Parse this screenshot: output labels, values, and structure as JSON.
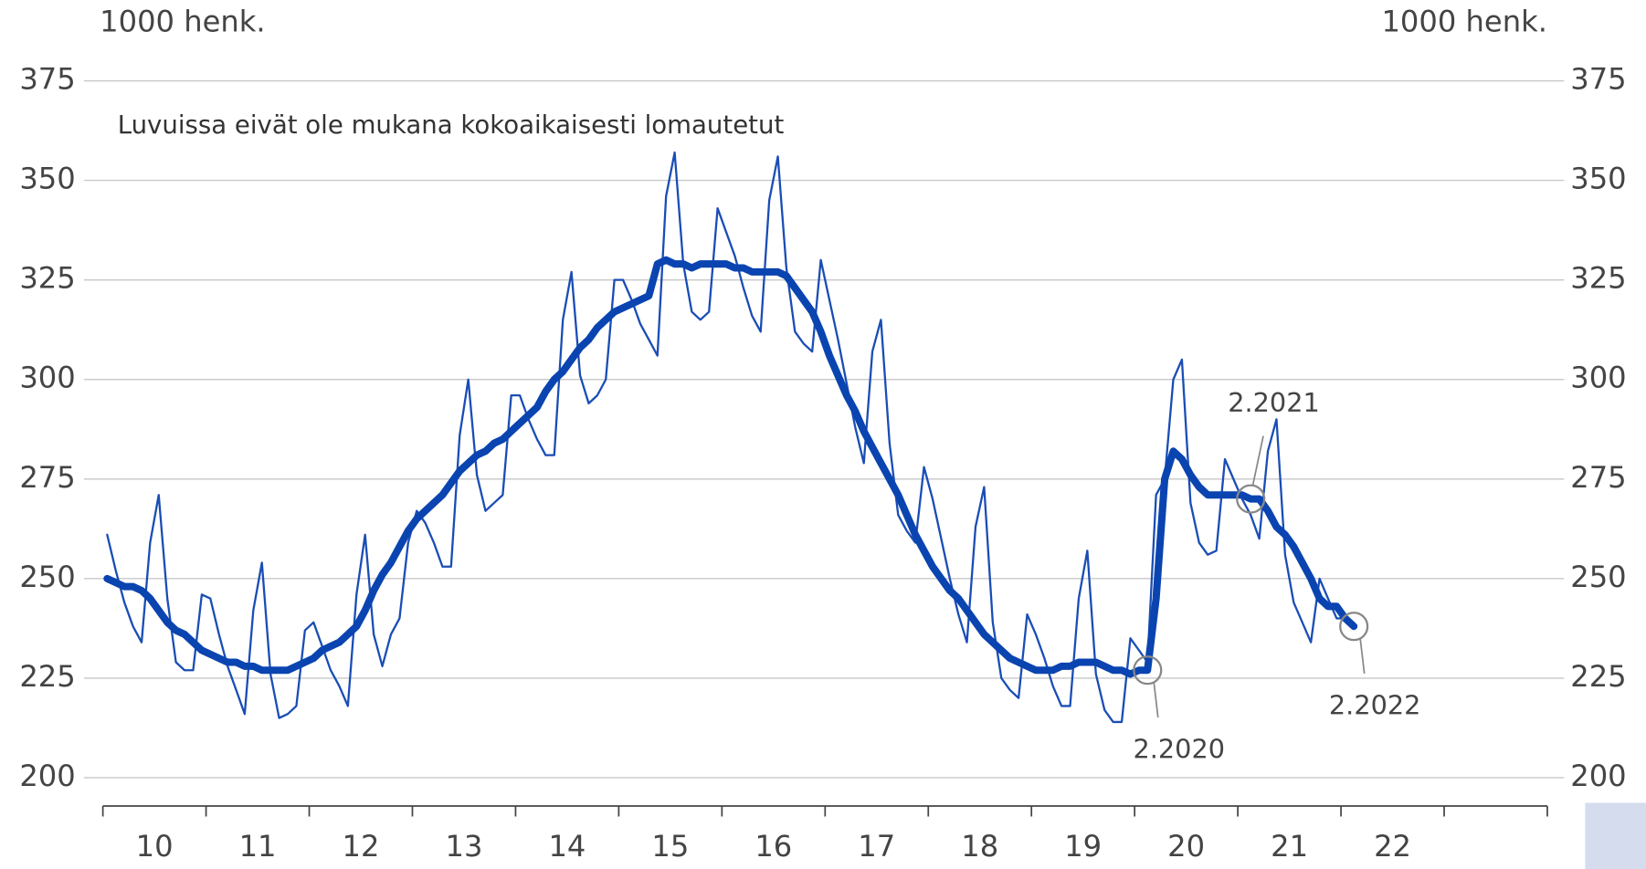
{
  "chart_data": {
    "type": "line",
    "ylabel": "1000 henk.",
    "y2label": "1000 henk.",
    "subtitle": "Luvuissa eivät ole mukana kokoaikaisesti lomautetut",
    "categories": [
      "10",
      "11",
      "12",
      "13",
      "14",
      "15",
      "16",
      "17",
      "18",
      "19",
      "20",
      "21",
      "22"
    ],
    "x": [
      "1.2010",
      "2.2010",
      "3.2010",
      "4.2010",
      "5.2010",
      "6.2010",
      "7.2010",
      "8.2010",
      "9.2010",
      "10.2010",
      "11.2010",
      "12.2010",
      "1.2011",
      "2.2011",
      "3.2011",
      "4.2011",
      "5.2011",
      "6.2011",
      "7.2011",
      "8.2011",
      "9.2011",
      "10.2011",
      "11.2011",
      "12.2011",
      "1.2012",
      "2.2012",
      "3.2012",
      "4.2012",
      "5.2012",
      "6.2012",
      "7.2012",
      "8.2012",
      "9.2012",
      "10.2012",
      "11.2012",
      "12.2012",
      "1.2013",
      "2.2013",
      "3.2013",
      "4.2013",
      "5.2013",
      "6.2013",
      "7.2013",
      "8.2013",
      "9.2013",
      "10.2013",
      "11.2013",
      "12.2013",
      "1.2014",
      "2.2014",
      "3.2014",
      "4.2014",
      "5.2014",
      "6.2014",
      "7.2014",
      "8.2014",
      "9.2014",
      "10.2014",
      "11.2014",
      "12.2014",
      "1.2015",
      "2.2015",
      "3.2015",
      "4.2015",
      "5.2015",
      "6.2015",
      "7.2015",
      "8.2015",
      "9.2015",
      "10.2015",
      "11.2015",
      "12.2015",
      "1.2016",
      "2.2016",
      "3.2016",
      "4.2016",
      "5.2016",
      "6.2016",
      "7.2016",
      "8.2016",
      "9.2016",
      "10.2016",
      "11.2016",
      "12.2016",
      "1.2017",
      "2.2017",
      "3.2017",
      "4.2017",
      "5.2017",
      "6.2017",
      "7.2017",
      "8.2017",
      "9.2017",
      "10.2017",
      "11.2017",
      "12.2017",
      "1.2018",
      "2.2018",
      "3.2018",
      "4.2018",
      "5.2018",
      "6.2018",
      "7.2018",
      "8.2018",
      "9.2018",
      "10.2018",
      "11.2018",
      "12.2018",
      "1.2019",
      "2.2019",
      "3.2019",
      "4.2019",
      "5.2019",
      "6.2019",
      "7.2019",
      "8.2019",
      "9.2019",
      "10.2019",
      "11.2019",
      "12.2019",
      "1.2020",
      "2.2020",
      "3.2020",
      "4.2020",
      "5.2020",
      "6.2020",
      "7.2020",
      "8.2020",
      "9.2020",
      "10.2020",
      "11.2020",
      "12.2020",
      "1.2021",
      "2.2021",
      "3.2021",
      "4.2021",
      "5.2021",
      "6.2021",
      "7.2021",
      "8.2021",
      "9.2021",
      "10.2021",
      "11.2021",
      "12.2021",
      "1.2022",
      "2.2022"
    ],
    "series": [
      {
        "color": "#1a4db5",
        "width": 2,
        "values": [
          261,
          252,
          244,
          238,
          234,
          259,
          271,
          245,
          229,
          227,
          227,
          246,
          245,
          236,
          228,
          222,
          216,
          242,
          254,
          226,
          215,
          216,
          218,
          237,
          239,
          233,
          227,
          223,
          218,
          246,
          261,
          236,
          228,
          236,
          240,
          259,
          267,
          264,
          259,
          253,
          253,
          286,
          300,
          276,
          267,
          269,
          271,
          296,
          296,
          290,
          285,
          281,
          281,
          315,
          327,
          301,
          294,
          296,
          300,
          325,
          325,
          320,
          314,
          310,
          306,
          346,
          357,
          329,
          317,
          315,
          317,
          343,
          337,
          331,
          323,
          316,
          312,
          345,
          356,
          328,
          312,
          309,
          307,
          330,
          320,
          310,
          299,
          288,
          279,
          307,
          315,
          284,
          266,
          262,
          259,
          278,
          270,
          260,
          250,
          241,
          234,
          263,
          273,
          239,
          225,
          222,
          220,
          241,
          236,
          230,
          223,
          218,
          218,
          245,
          257,
          226,
          217,
          214,
          214,
          235,
          232,
          229,
          271,
          275,
          300,
          305,
          269,
          259,
          256,
          257,
          280,
          275,
          270,
          266,
          260,
          282,
          290,
          256,
          244,
          239,
          234,
          250,
          245,
          240,
          240,
          238
        ]
      },
      {
        "color": "#0a44b0",
        "width": 7,
        "values": [
          250,
          249,
          248,
          248,
          247,
          245,
          242,
          239,
          237,
          236,
          234,
          232,
          231,
          230,
          229,
          229,
          228,
          228,
          227,
          227,
          227,
          227,
          228,
          229,
          230,
          232,
          233,
          234,
          236,
          238,
          242,
          247,
          251,
          254,
          258,
          262,
          265,
          267,
          269,
          271,
          274,
          277,
          279,
          281,
          282,
          284,
          285,
          287,
          289,
          291,
          293,
          297,
          300,
          302,
          305,
          308,
          310,
          313,
          315,
          317,
          318,
          319,
          320,
          321,
          329,
          330,
          329,
          329,
          328,
          329,
          329,
          329,
          329,
          328,
          328,
          327,
          327,
          327,
          327,
          326,
          323,
          320,
          317,
          312,
          306,
          301,
          296,
          292,
          287,
          283,
          279,
          275,
          271,
          266,
          261,
          257,
          253,
          250,
          247,
          245,
          242,
          239,
          236,
          234,
          232,
          230,
          229,
          228,
          227,
          227,
          227,
          228,
          228,
          229,
          229,
          229,
          228,
          227,
          227,
          226,
          227,
          227,
          245,
          275,
          282,
          280,
          276,
          273,
          271,
          271,
          271,
          271,
          271,
          270,
          270,
          267,
          263,
          261,
          258,
          254,
          250,
          245,
          243,
          243,
          240,
          238
        ]
      }
    ],
    "annotations": [
      {
        "text": "2.2020"
      },
      {
        "text": "2.2021"
      },
      {
        "text": "2.2022"
      }
    ],
    "ylim": [
      200,
      375
    ],
    "yticks": [
      200,
      225,
      250,
      275,
      300,
      325,
      350,
      375
    ],
    "y2lim": [
      200,
      375
    ],
    "y2ticks": [
      200,
      225,
      250,
      275,
      300,
      325,
      350,
      375
    ],
    "grid": true
  }
}
